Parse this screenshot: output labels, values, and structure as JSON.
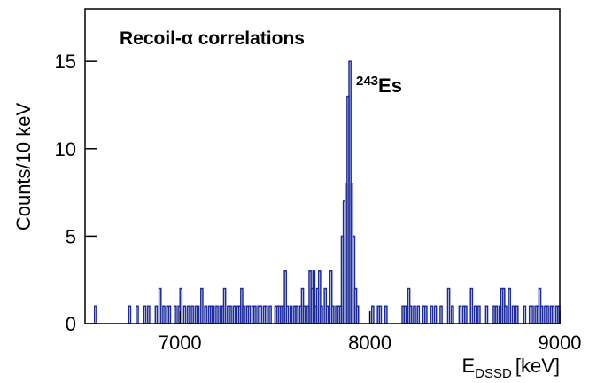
{
  "chart_data": {
    "type": "histogram",
    "title": "Recoil-α correlations",
    "annotation": {
      "mass": "243",
      "element": "Es"
    },
    "x_label": {
      "symbol": "E",
      "subscript": "DSSD",
      "unit": "[keV]"
    },
    "y_label": "Counts/10 keV",
    "color": "#1a2a9a",
    "xlim": [
      6500,
      9000
    ],
    "xticks": [
      7000,
      8000,
      9000
    ],
    "ylim": [
      0,
      18
    ],
    "yticks": [
      0,
      5,
      10,
      15
    ],
    "bins": [
      6500,
      6510,
      6520,
      6530,
      6540,
      6550,
      6560,
      6570,
      6580,
      6590,
      6600,
      6610,
      6620,
      6630,
      6640,
      6650,
      6660,
      6670,
      6680,
      6690,
      6700,
      6710,
      6720,
      6730,
      6740,
      6750,
      6760,
      6770,
      6780,
      6790,
      6800,
      6810,
      6820,
      6830,
      6840,
      6850,
      6860,
      6870,
      6880,
      6890,
      6900,
      6910,
      6920,
      6930,
      6940,
      6950,
      6960,
      6970,
      6980,
      6990,
      7000,
      7010,
      7020,
      7030,
      7040,
      7050,
      7060,
      7070,
      7080,
      7090,
      7100,
      7110,
      7120,
      7130,
      7140,
      7150,
      7160,
      7170,
      7180,
      7190,
      7200,
      7210,
      7220,
      7230,
      7240,
      7250,
      7260,
      7270,
      7280,
      7290,
      7300,
      7310,
      7320,
      7330,
      7340,
      7350,
      7360,
      7370,
      7380,
      7390,
      7400,
      7410,
      7420,
      7430,
      7440,
      7450,
      7460,
      7470,
      7480,
      7490,
      7500,
      7510,
      7520,
      7530,
      7540,
      7550,
      7560,
      7570,
      7580,
      7590,
      7600,
      7610,
      7620,
      7630,
      7640,
      7650,
      7660,
      7670,
      7680,
      7690,
      7700,
      7710,
      7720,
      7730,
      7740,
      7750,
      7760,
      7770,
      7780,
      7790,
      7800,
      7810,
      7820,
      7830,
      7840,
      7850,
      7860,
      7870,
      7880,
      7890,
      7900,
      7910,
      7920,
      7930,
      7940,
      7950,
      7960,
      7970,
      7980,
      7990,
      8000,
      8010,
      8020,
      8030,
      8040,
      8050,
      8060,
      8070,
      8080,
      8090,
      8100,
      8110,
      8120,
      8130,
      8140,
      8150,
      8160,
      8170,
      8180,
      8190,
      8200,
      8210,
      8220,
      8230,
      8240,
      8250,
      8260,
      8270,
      8280,
      8290,
      8300,
      8310,
      8320,
      8330,
      8340,
      8350,
      8360,
      8370,
      8380,
      8390,
      8400,
      8410,
      8420,
      8430,
      8440,
      8450,
      8460,
      8470,
      8480,
      8490,
      8500,
      8510,
      8520,
      8530,
      8540,
      8550,
      8560,
      8570,
      8580,
      8590,
      8600,
      8610,
      8620,
      8630,
      8640,
      8650,
      8660,
      8670,
      8680,
      8690,
      8700,
      8710,
      8720,
      8730,
      8740,
      8750,
      8760,
      8770,
      8780,
      8790,
      8800,
      8810,
      8820,
      8830,
      8840,
      8850,
      8860,
      8870,
      8880,
      8890,
      8900,
      8910,
      8920,
      8930,
      8940,
      8950,
      8960,
      8970,
      8980,
      8990,
      9000
    ],
    "values": [
      0,
      0,
      0,
      0,
      0,
      1,
      0,
      0,
      0,
      0,
      0,
      0,
      0,
      0,
      0,
      0,
      0,
      0,
      0,
      0,
      0,
      0,
      0,
      1,
      0,
      0,
      0,
      1,
      0,
      0,
      0,
      1,
      0,
      1,
      0,
      0,
      0,
      1,
      0,
      2,
      0,
      1,
      0,
      1,
      1,
      0,
      0,
      1,
      0,
      1,
      2,
      0,
      1,
      0,
      1,
      0,
      1,
      0,
      1,
      1,
      0,
      2,
      0,
      1,
      0,
      1,
      1,
      1,
      0,
      1,
      0,
      1,
      1,
      2,
      0,
      1,
      1,
      0,
      1,
      0,
      1,
      1,
      2,
      1,
      0,
      1,
      1,
      0,
      1,
      1,
      0,
      1,
      1,
      0,
      1,
      1,
      0,
      1,
      0,
      0,
      1,
      1,
      1,
      1,
      1,
      3,
      1,
      0,
      1,
      0,
      1,
      1,
      0,
      1,
      2,
      1,
      0,
      1,
      3,
      2,
      3,
      1,
      2,
      3,
      1,
      0,
      2,
      1,
      0,
      3,
      1,
      0,
      1,
      1,
      1,
      5,
      7,
      8,
      13,
      15,
      8,
      5,
      2,
      1,
      0,
      0,
      0,
      0,
      0,
      0,
      0,
      1,
      0,
      0,
      1,
      1,
      0,
      0,
      1,
      0,
      0,
      0,
      0,
      0,
      0,
      0,
      0,
      1,
      1,
      0,
      2,
      1,
      0,
      1,
      0,
      1,
      0,
      0,
      1,
      1,
      0,
      0,
      1,
      0,
      1,
      0,
      0,
      1,
      0,
      0,
      0,
      2,
      0,
      1,
      0,
      0,
      0,
      1,
      0,
      1,
      1,
      0,
      0,
      2,
      0,
      1,
      0,
      1,
      0,
      0,
      0,
      1,
      0,
      0,
      0,
      1,
      1,
      0,
      1,
      2,
      2,
      1,
      0,
      2,
      0,
      1,
      0,
      1,
      0,
      0,
      0,
      1,
      0,
      0,
      1,
      1,
      0,
      1,
      1,
      2,
      1,
      0,
      1,
      1,
      0,
      1,
      1,
      0,
      1,
      1
    ]
  }
}
